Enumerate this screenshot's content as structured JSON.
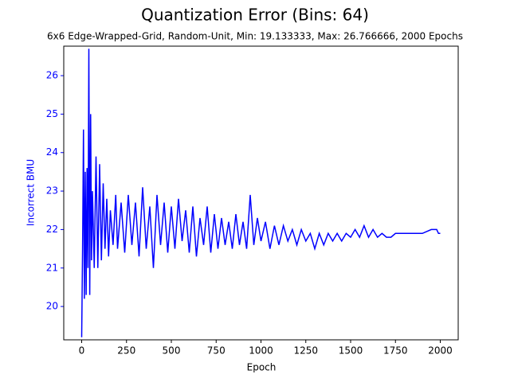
{
  "chart_data": {
    "type": "line",
    "title": "Quantization Error (Bins: 64)",
    "subtitle": "6x6 Edge-Wrapped-Grid, Random-Unit, Min: 19.133333, Max: 26.766666, 2000 Epochs",
    "x_label": "Epoch",
    "y_label": "Incorrect BMU",
    "xlim": [
      -100,
      2100
    ],
    "ylim": [
      19.133333,
      26.766666
    ],
    "xticks": [
      0,
      250,
      500,
      750,
      1000,
      1250,
      1500,
      1750,
      2000
    ],
    "yticks": [
      20,
      21,
      22,
      23,
      24,
      25,
      26
    ],
    "axis_color": "#0000ff",
    "series": [
      {
        "color": "#0000ff",
        "x": [
          0,
          5,
          10,
          15,
          20,
          25,
          30,
          35,
          40,
          45,
          50,
          55,
          60,
          70,
          80,
          90,
          100,
          110,
          120,
          130,
          140,
          150,
          160,
          175,
          190,
          200,
          220,
          240,
          260,
          280,
          300,
          320,
          340,
          360,
          380,
          400,
          420,
          440,
          460,
          480,
          500,
          520,
          540,
          560,
          580,
          600,
          620,
          640,
          660,
          680,
          700,
          720,
          740,
          760,
          780,
          800,
          820,
          840,
          860,
          880,
          900,
          920,
          940,
          960,
          980,
          1000,
          1025,
          1050,
          1075,
          1100,
          1125,
          1150,
          1175,
          1200,
          1225,
          1250,
          1275,
          1300,
          1325,
          1350,
          1375,
          1400,
          1425,
          1450,
          1475,
          1500,
          1525,
          1550,
          1575,
          1600,
          1625,
          1650,
          1675,
          1700,
          1725,
          1750,
          1800,
          1850,
          1900,
          1950,
          1980,
          1990,
          2000
        ],
        "values": [
          19.2,
          21.5,
          24.6,
          20.2,
          23.5,
          20.3,
          23.6,
          21.0,
          26.7,
          20.3,
          25.0,
          21.2,
          23.0,
          21.0,
          23.9,
          21.0,
          23.7,
          21.2,
          23.2,
          21.5,
          22.8,
          21.3,
          22.5,
          21.6,
          22.9,
          21.5,
          22.7,
          21.4,
          22.9,
          21.6,
          22.7,
          21.3,
          23.1,
          21.5,
          22.6,
          21.0,
          22.9,
          21.6,
          22.7,
          21.4,
          22.6,
          21.5,
          22.8,
          21.7,
          22.5,
          21.4,
          22.6,
          21.3,
          22.3,
          21.6,
          22.6,
          21.4,
          22.4,
          21.5,
          22.3,
          21.6,
          22.2,
          21.5,
          22.4,
          21.6,
          22.2,
          21.5,
          22.9,
          21.6,
          22.3,
          21.7,
          22.2,
          21.5,
          22.1,
          21.6,
          22.1,
          21.7,
          22.0,
          21.6,
          22.0,
          21.7,
          21.9,
          21.5,
          21.9,
          21.6,
          21.9,
          21.7,
          21.9,
          21.7,
          21.9,
          21.8,
          22.0,
          21.8,
          22.1,
          21.8,
          22.0,
          21.8,
          21.9,
          21.8,
          21.8,
          21.9,
          21.9,
          21.9,
          21.9,
          22.0,
          22.0,
          21.9,
          21.9
        ]
      }
    ]
  }
}
